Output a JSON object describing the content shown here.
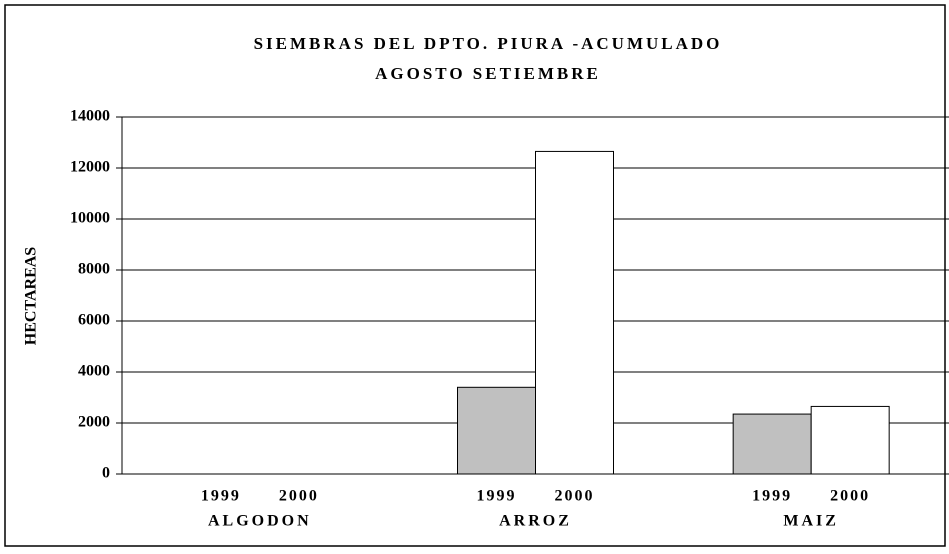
{
  "chart_data": {
    "type": "bar",
    "title": "SIEMBRAS DEL DPTO. PIURA -ACUMULADO",
    "subtitle": "AGOSTO SETIEMBRE",
    "y_label": "HECTAREAS",
    "categories": [
      "ALGODON",
      "ARROZ",
      "MAIZ"
    ],
    "series": [
      {
        "name": "1999",
        "color": "#c0c0c0",
        "values": [
          0,
          3400,
          2350
        ]
      },
      {
        "name": "2000",
        "color": "#ffffff",
        "values": [
          0,
          12650,
          2650
        ]
      }
    ],
    "ylim": [
      0,
      14000
    ],
    "yticks": [
      0,
      2000,
      4000,
      6000,
      8000,
      10000,
      12000,
      14000
    ],
    "grid": true
  }
}
